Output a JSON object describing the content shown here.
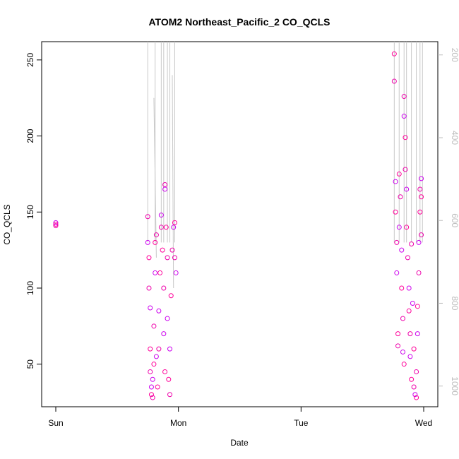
{
  "chart_data": {
    "type": "scatter",
    "title": "ATOM2 Northeast_Pacific_2 CO_QCLS",
    "xlabel": "Date",
    "ylabel": "CO_QCLS",
    "x_ticks": [
      "Sun",
      "Mon",
      "Tue",
      "Wed"
    ],
    "y_ticks": [
      50,
      100,
      150,
      200,
      250
    ],
    "y_right_ticks": [
      200,
      400,
      600,
      800,
      1000
    ],
    "ylim": [
      22,
      262
    ],
    "y_right_lim": [
      168,
      1050
    ],
    "y_right_reversed": true,
    "grid": false,
    "point_colors": [
      "#ee00aa",
      "#cc00ee",
      "#ff0099"
    ],
    "line_color": "#c8c8c8",
    "series": [
      {
        "values": [
          {
            "x": 0.0,
            "y": 141
          },
          {
            "x": 0.0,
            "y": 143
          },
          {
            "x": 0.0,
            "y": 142
          },
          {
            "x": 0.75,
            "y": 147
          },
          {
            "x": 0.75,
            "y": 130
          },
          {
            "x": 0.76,
            "y": 120
          },
          {
            "x": 0.76,
            "y": 100
          },
          {
            "x": 0.77,
            "y": 87
          },
          {
            "x": 0.77,
            "y": 60
          },
          {
            "x": 0.77,
            "y": 45
          },
          {
            "x": 0.78,
            "y": 35
          },
          {
            "x": 0.78,
            "y": 30
          },
          {
            "x": 0.79,
            "y": 28
          },
          {
            "x": 0.79,
            "y": 40
          },
          {
            "x": 0.8,
            "y": 50
          },
          {
            "x": 0.8,
            "y": 75
          },
          {
            "x": 0.81,
            "y": 110
          },
          {
            "x": 0.81,
            "y": 130
          },
          {
            "x": 0.82,
            "y": 135
          },
          {
            "x": 0.82,
            "y": 55
          },
          {
            "x": 0.83,
            "y": 35
          },
          {
            "x": 0.84,
            "y": 60
          },
          {
            "x": 0.84,
            "y": 85
          },
          {
            "x": 0.85,
            "y": 110
          },
          {
            "x": 0.86,
            "y": 140
          },
          {
            "x": 0.86,
            "y": 148
          },
          {
            "x": 0.87,
            "y": 125
          },
          {
            "x": 0.88,
            "y": 100
          },
          {
            "x": 0.88,
            "y": 70
          },
          {
            "x": 0.89,
            "y": 45
          },
          {
            "x": 0.89,
            "y": 168
          },
          {
            "x": 0.89,
            "y": 165
          },
          {
            "x": 0.9,
            "y": 140
          },
          {
            "x": 0.91,
            "y": 120
          },
          {
            "x": 0.91,
            "y": 80
          },
          {
            "x": 0.92,
            "y": 40
          },
          {
            "x": 0.93,
            "y": 30
          },
          {
            "x": 0.93,
            "y": 60
          },
          {
            "x": 0.94,
            "y": 95
          },
          {
            "x": 0.95,
            "y": 125
          },
          {
            "x": 0.96,
            "y": 140
          },
          {
            "x": 0.97,
            "y": 143
          },
          {
            "x": 0.97,
            "y": 120
          },
          {
            "x": 0.98,
            "y": 110
          },
          {
            "x": 2.76,
            "y": 254
          },
          {
            "x": 2.76,
            "y": 236
          },
          {
            "x": 2.77,
            "y": 170
          },
          {
            "x": 2.77,
            "y": 150
          },
          {
            "x": 2.78,
            "y": 130
          },
          {
            "x": 2.78,
            "y": 110
          },
          {
            "x": 2.79,
            "y": 70
          },
          {
            "x": 2.79,
            "y": 62
          },
          {
            "x": 2.8,
            "y": 140
          },
          {
            "x": 2.8,
            "y": 175
          },
          {
            "x": 2.81,
            "y": 160
          },
          {
            "x": 2.82,
            "y": 125
          },
          {
            "x": 2.82,
            "y": 100
          },
          {
            "x": 2.83,
            "y": 80
          },
          {
            "x": 2.83,
            "y": 58
          },
          {
            "x": 2.84,
            "y": 50
          },
          {
            "x": 2.84,
            "y": 226
          },
          {
            "x": 2.84,
            "y": 213
          },
          {
            "x": 2.85,
            "y": 199
          },
          {
            "x": 2.85,
            "y": 178
          },
          {
            "x": 2.86,
            "y": 165
          },
          {
            "x": 2.86,
            "y": 140
          },
          {
            "x": 2.87,
            "y": 120
          },
          {
            "x": 2.88,
            "y": 100
          },
          {
            "x": 2.88,
            "y": 85
          },
          {
            "x": 2.89,
            "y": 70
          },
          {
            "x": 2.89,
            "y": 55
          },
          {
            "x": 2.9,
            "y": 40
          },
          {
            "x": 2.9,
            "y": 129
          },
          {
            "x": 2.91,
            "y": 90
          },
          {
            "x": 2.92,
            "y": 60
          },
          {
            "x": 2.92,
            "y": 35
          },
          {
            "x": 2.93,
            "y": 30
          },
          {
            "x": 2.94,
            "y": 28
          },
          {
            "x": 2.94,
            "y": 45
          },
          {
            "x": 2.95,
            "y": 70
          },
          {
            "x": 2.95,
            "y": 88
          },
          {
            "x": 2.96,
            "y": 110
          },
          {
            "x": 2.96,
            "y": 130
          },
          {
            "x": 2.97,
            "y": 150
          },
          {
            "x": 2.97,
            "y": 165
          },
          {
            "x": 2.98,
            "y": 172
          },
          {
            "x": 2.98,
            "y": 160
          },
          {
            "x": 2.98,
            "y": 135
          }
        ]
      }
    ]
  }
}
